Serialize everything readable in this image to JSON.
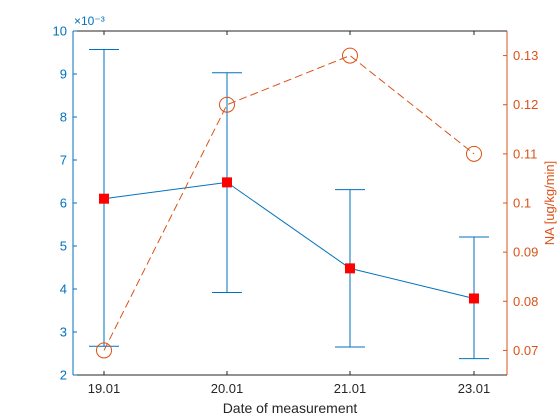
{
  "chart_data": {
    "type": "line",
    "xlabel": "Date of measurement",
    "categories": [
      "19.01",
      "20.01",
      "21.01",
      "23.01"
    ],
    "left_axis": {
      "ylim": [
        2,
        10
      ],
      "ticks": [
        "2",
        "3",
        "4",
        "5",
        "6",
        "7",
        "8",
        "9",
        "10"
      ],
      "exponent_label": "×10⁻³",
      "color": "#0072BD"
    },
    "right_axis": {
      "label": "NA [ug/kg/min]",
      "ylim": [
        0.065,
        0.135
      ],
      "ticks": [
        "0.07",
        "0.08",
        "0.09",
        "0.1",
        "0.11",
        "0.12",
        "0.13"
      ],
      "color": "#D95319"
    },
    "series": [
      {
        "axis": "left",
        "style": "solid-line-errorbars",
        "color": "#0072BD",
        "marker_color": "#FF0000",
        "values": [
          6.1,
          6.48,
          4.48,
          3.78
        ],
        "error_low": [
          2.67,
          3.92,
          2.65,
          2.38
        ],
        "error_high": [
          9.57,
          9.03,
          6.31,
          5.21
        ]
      },
      {
        "axis": "right",
        "style": "dashed-line-open-circles",
        "color": "#D95319",
        "values": [
          0.07,
          0.12,
          0.13,
          0.11
        ]
      }
    ]
  }
}
